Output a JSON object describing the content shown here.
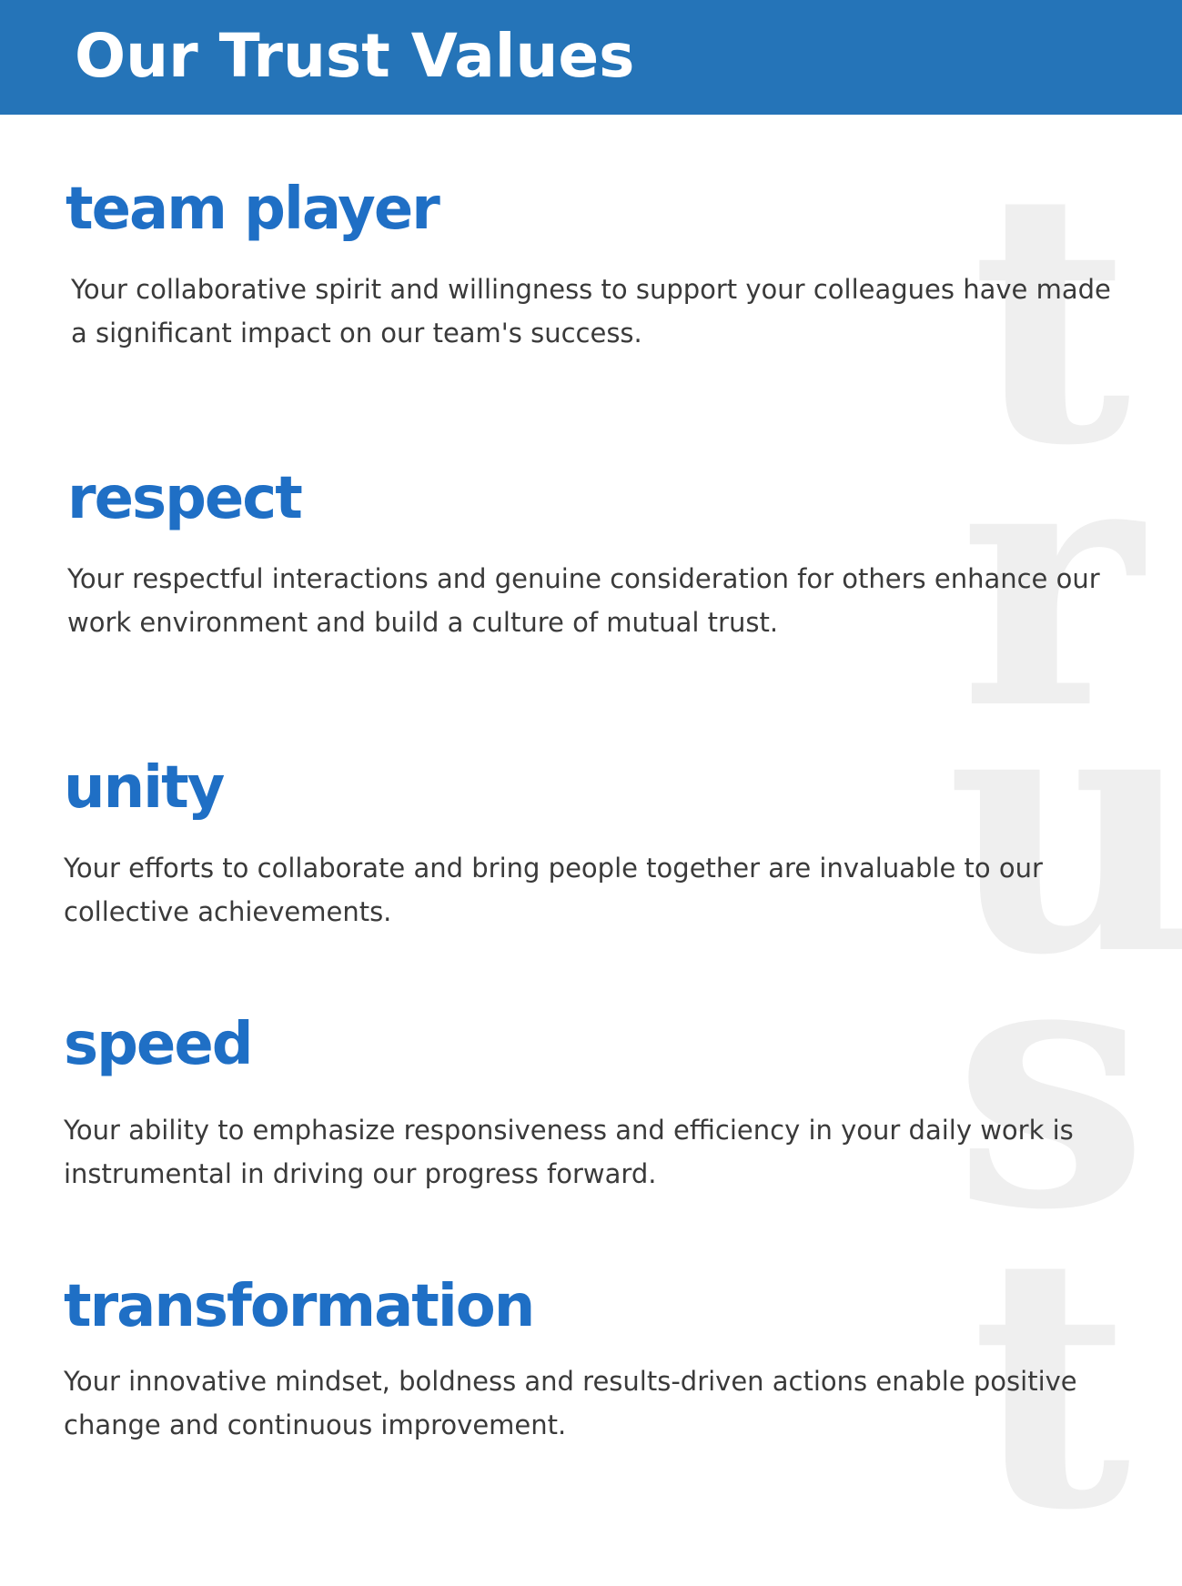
{
  "header": {
    "title": "Our Trust Values",
    "background_color": "#2574b8"
  },
  "watermark": {
    "letters": [
      "t",
      "r",
      "u",
      "s",
      "t"
    ],
    "color": "#efefef"
  },
  "values": [
    {
      "title": "team player",
      "description": "Your collaborative spirit and willingness to support your colleagues have made a significant impact on our team's success."
    },
    {
      "title": "respect",
      "description": "Your respectful interactions and genuine consideration for others enhance our work environment and build a culture of mutual trust."
    },
    {
      "title": "unity",
      "description": "Your efforts to collaborate and bring people together are invaluable to our collective achievements."
    },
    {
      "title": "speed",
      "description": "Your ability to emphasize responsiveness and efficiency in your daily work is instrumental in driving our progress forward."
    },
    {
      "title": "transformation",
      "description": "Your innovative mindset, boldness and results-driven actions enable positive change and continuous improvement."
    }
  ],
  "colors": {
    "title_blue": "#1f6fc5",
    "body_text": "#3a3a3a"
  }
}
